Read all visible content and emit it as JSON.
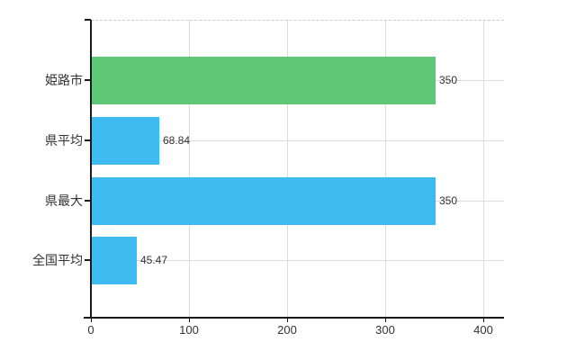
{
  "chart_data": {
    "type": "bar",
    "orientation": "horizontal",
    "title": "",
    "xlabel": "",
    "ylabel": "",
    "categories": [
      "姫路市",
      "県平均",
      "県最大",
      "全国平均"
    ],
    "values": [
      350,
      68.84,
      350,
      45.47
    ],
    "value_labels": [
      "350",
      "68.84",
      "350",
      "45.47"
    ],
    "bar_colors": [
      "#5fc878",
      "#3ebcf2",
      "#3ebcf2",
      "#3ebcf2"
    ],
    "x_ticks": [
      0,
      100,
      200,
      300,
      400
    ],
    "x_tick_labels": [
      "0",
      "100",
      "200",
      "300",
      "400"
    ],
    "xlim": [
      0,
      420
    ],
    "grid": true,
    "legend": false
  },
  "colors": {
    "bar_green": "#5fc878",
    "bar_blue": "#3ebcf2",
    "axis": "#1a1a1a",
    "gridline": "#dcdcdc",
    "top_border": "#cccccc",
    "text": "#333333",
    "background": "#ffffff"
  }
}
